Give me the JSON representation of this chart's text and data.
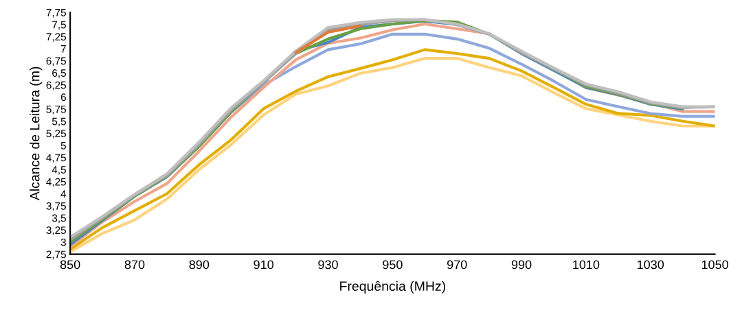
{
  "chart_data": {
    "type": "line",
    "xlabel": "Frequência (MHz)",
    "ylabel": "Alcance de Leitura (m)",
    "x": [
      850,
      860,
      870,
      880,
      890,
      900,
      910,
      920,
      930,
      940,
      950,
      960,
      970,
      980,
      990,
      1000,
      1010,
      1020,
      1030,
      1040,
      1050
    ],
    "xlim": [
      850,
      1050
    ],
    "xticks": [
      850,
      870,
      890,
      910,
      930,
      950,
      970,
      990,
      1010,
      1030,
      1050
    ],
    "ylim": [
      2.75,
      7.75
    ],
    "yticks": [
      {
        "value": 2.75,
        "label": "2,75"
      },
      {
        "value": 3,
        "label": "3"
      },
      {
        "value": 3.25,
        "label": "3,25"
      },
      {
        "value": 3.5,
        "label": "3,5"
      },
      {
        "value": 3.75,
        "label": "3,75"
      },
      {
        "value": 4,
        "label": "4"
      },
      {
        "value": 4.25,
        "label": "4,25"
      },
      {
        "value": 4.5,
        "label": "4,5"
      },
      {
        "value": 4.75,
        "label": "4,75"
      },
      {
        "value": 5,
        "label": "5"
      },
      {
        "value": 5.25,
        "label": "5,25"
      },
      {
        "value": 5.5,
        "label": "5,5"
      },
      {
        "value": 5.75,
        "label": "5,75"
      },
      {
        "value": 6,
        "label": "6"
      },
      {
        "value": 6.25,
        "label": "6,25"
      },
      {
        "value": 6.5,
        "label": "6,5"
      },
      {
        "value": 6.75,
        "label": "6,75"
      },
      {
        "value": 7,
        "label": "7"
      },
      {
        "value": 7.25,
        "label": "7,25"
      },
      {
        "value": 7.5,
        "label": "7,5"
      },
      {
        "value": 7.75,
        "label": "7,75"
      }
    ],
    "grid": false,
    "legend": false,
    "line_style": "solid",
    "series": [
      {
        "color": "#ffd37f",
        "values": [
          2.8,
          3.18,
          3.46,
          3.89,
          4.5,
          5.02,
          5.63,
          6.06,
          6.23,
          6.49,
          6.61,
          6.8,
          6.8,
          6.61,
          6.44,
          6.09,
          5.76,
          5.63,
          5.5,
          5.4,
          5.4
        ]
      },
      {
        "color": "#e2ae00",
        "values": [
          2.85,
          3.3,
          3.65,
          4.0,
          4.6,
          5.12,
          5.76,
          6.12,
          6.42,
          6.59,
          6.77,
          6.98,
          6.9,
          6.8,
          6.54,
          6.2,
          5.85,
          5.66,
          5.62,
          5.5,
          5.4
        ]
      },
      {
        "color": "#8fa8dc",
        "values": [
          2.95,
          3.47,
          3.95,
          4.35,
          4.98,
          5.69,
          6.25,
          6.63,
          6.98,
          7.1,
          7.3,
          7.3,
          7.2,
          7.01,
          6.68,
          6.33,
          5.95,
          5.8,
          5.66,
          5.6,
          5.6
        ]
      },
      {
        "color": "#f0a58a",
        "values": [
          2.9,
          3.42,
          3.84,
          4.21,
          4.88,
          5.59,
          6.2,
          6.77,
          7.11,
          7.22,
          7.39,
          7.51,
          7.41,
          7.31,
          6.9,
          6.59,
          6.19,
          6.04,
          5.88,
          5.7,
          5.7
        ]
      },
      {
        "color": "#e07b39",
        "values": [
          null,
          null,
          null,
          null,
          null,
          null,
          null,
          6.92,
          7.34,
          7.47,
          null,
          null,
          null,
          null,
          null,
          null,
          null,
          null,
          null,
          null,
          null
        ]
      },
      {
        "color": "#4a86c5",
        "values": [
          2.95,
          3.45,
          3.95,
          4.35,
          5.0,
          5.7,
          6.3,
          6.95,
          7.13,
          7.44,
          7.51,
          7.57,
          7.5,
          7.3,
          6.9,
          6.55,
          6.2,
          6.05,
          5.85,
          5.75,
          null
        ]
      },
      {
        "color": "#6a9f44",
        "values": [
          3.0,
          3.47,
          3.95,
          4.36,
          4.98,
          5.7,
          6.32,
          6.9,
          7.2,
          7.41,
          7.51,
          7.58,
          7.55,
          7.3,
          6.92,
          6.58,
          6.22,
          6.06,
          5.86,
          5.77,
          null
        ]
      },
      {
        "color": "#a0a0a0",
        "values": [
          3.05,
          3.5,
          3.97,
          4.38,
          5.02,
          5.74,
          6.3,
          6.9,
          7.38,
          7.5,
          7.58,
          7.6,
          7.5,
          7.3,
          6.92,
          6.58,
          6.25,
          6.08,
          5.88,
          5.78,
          5.8
        ]
      },
      {
        "color": "#bfbfbf",
        "values": [
          3.1,
          3.53,
          3.99,
          4.41,
          5.07,
          5.78,
          6.34,
          6.95,
          7.44,
          7.54,
          7.6,
          7.6,
          7.51,
          7.31,
          6.95,
          6.6,
          6.27,
          6.11,
          5.9,
          5.8,
          5.8
        ]
      }
    ]
  }
}
